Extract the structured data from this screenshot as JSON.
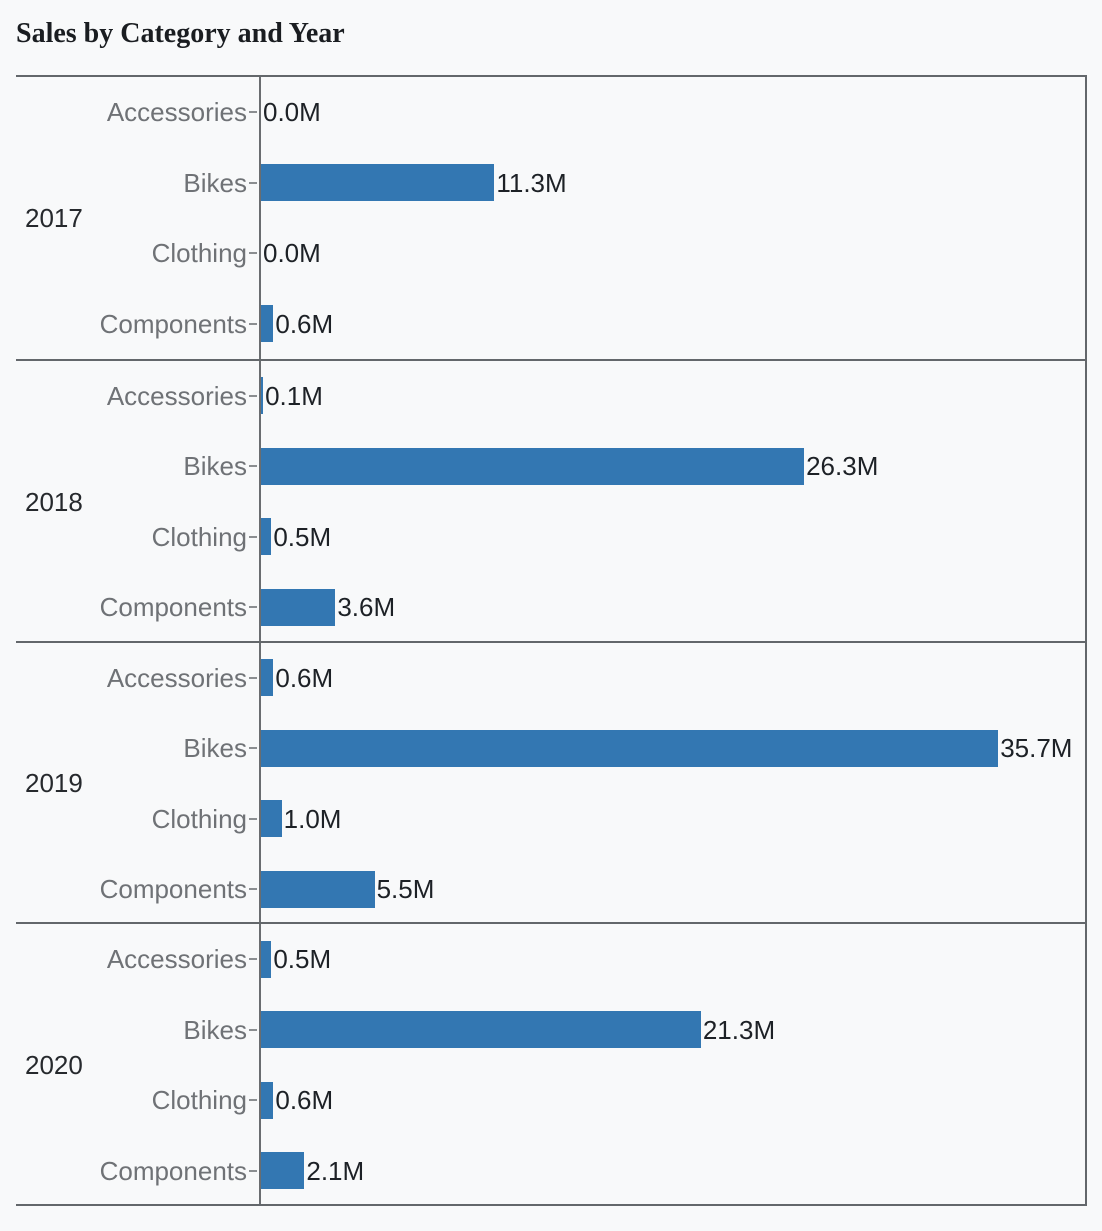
{
  "chart_data": {
    "type": "bar",
    "orientation": "horizontal",
    "title": "Sales by Category and Year",
    "group_field": "Year",
    "category_field": "Category",
    "categories": [
      "Accessories",
      "Bikes",
      "Clothing",
      "Components"
    ],
    "unit": "M",
    "xlim": [
      0,
      35.7
    ],
    "grid": false,
    "legend": "none",
    "groups": [
      {
        "year": "2017",
        "values": [
          0.0,
          11.3,
          0.0,
          0.6
        ],
        "value_labels": [
          "0.0M",
          "11.3M",
          "0.0M",
          "0.6M"
        ]
      },
      {
        "year": "2018",
        "values": [
          0.1,
          26.3,
          0.5,
          3.6
        ],
        "value_labels": [
          "0.1M",
          "26.3M",
          "0.5M",
          "3.6M"
        ]
      },
      {
        "year": "2019",
        "values": [
          0.6,
          35.7,
          1.0,
          5.5
        ],
        "value_labels": [
          "0.6M",
          "35.7M",
          "1.0M",
          "5.5M"
        ]
      },
      {
        "year": "2020",
        "values": [
          0.5,
          21.3,
          0.6,
          2.1
        ],
        "value_labels": [
          "0.5M",
          "21.3M",
          "0.6M",
          "2.1M"
        ]
      }
    ],
    "colors": {
      "bar": "#3377b2",
      "background": "#f8f9fa",
      "frame_line": "#63676b",
      "axis_line": "#6a6d70",
      "category_tick": "#8b8e91",
      "title_text": "#1a1d21",
      "year_text": "#26292d",
      "category_text": "#6f7276",
      "value_text": "#1d2126"
    }
  }
}
